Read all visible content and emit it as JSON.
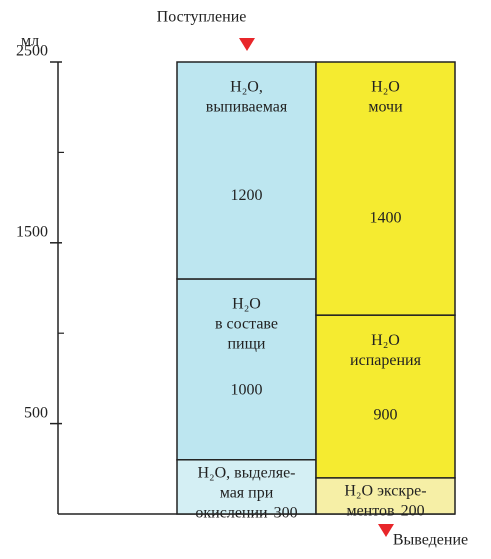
{
  "chart_data": {
    "type": "stacked-column",
    "y_unit": "мл",
    "ylim": [
      0,
      2500
    ],
    "yticks": [
      500,
      1500,
      2500
    ],
    "yticks_minor": [
      1000,
      2000
    ],
    "columns": [
      {
        "label": "Поступление",
        "segments": [
          {
            "lines": [
              "H₂O, выделяе-",
              "мая при",
              "окислении"
            ],
            "value": 300,
            "color": "#d4eff4"
          },
          {
            "lines": [
              "H₂O",
              "в составе",
              "пищи"
            ],
            "value": 1000,
            "color": "#bde6f0"
          },
          {
            "lines": [
              "H₂O,",
              "выпиваемая"
            ],
            "value": 1200,
            "color": "#bde6f0"
          }
        ]
      },
      {
        "label": "Выведение",
        "segments": [
          {
            "lines": [
              "H₂O экскре-",
              "ментов"
            ],
            "value": 200,
            "color": "#f6efa6"
          },
          {
            "lines": [
              "H₂O",
              "испарения"
            ],
            "value": 900,
            "color": "#f5eb30"
          },
          {
            "lines": [
              "H₂O",
              "мочи"
            ],
            "value": 1400,
            "color": "#f5eb30"
          }
        ]
      }
    ],
    "marker_color": "#e8262a"
  }
}
